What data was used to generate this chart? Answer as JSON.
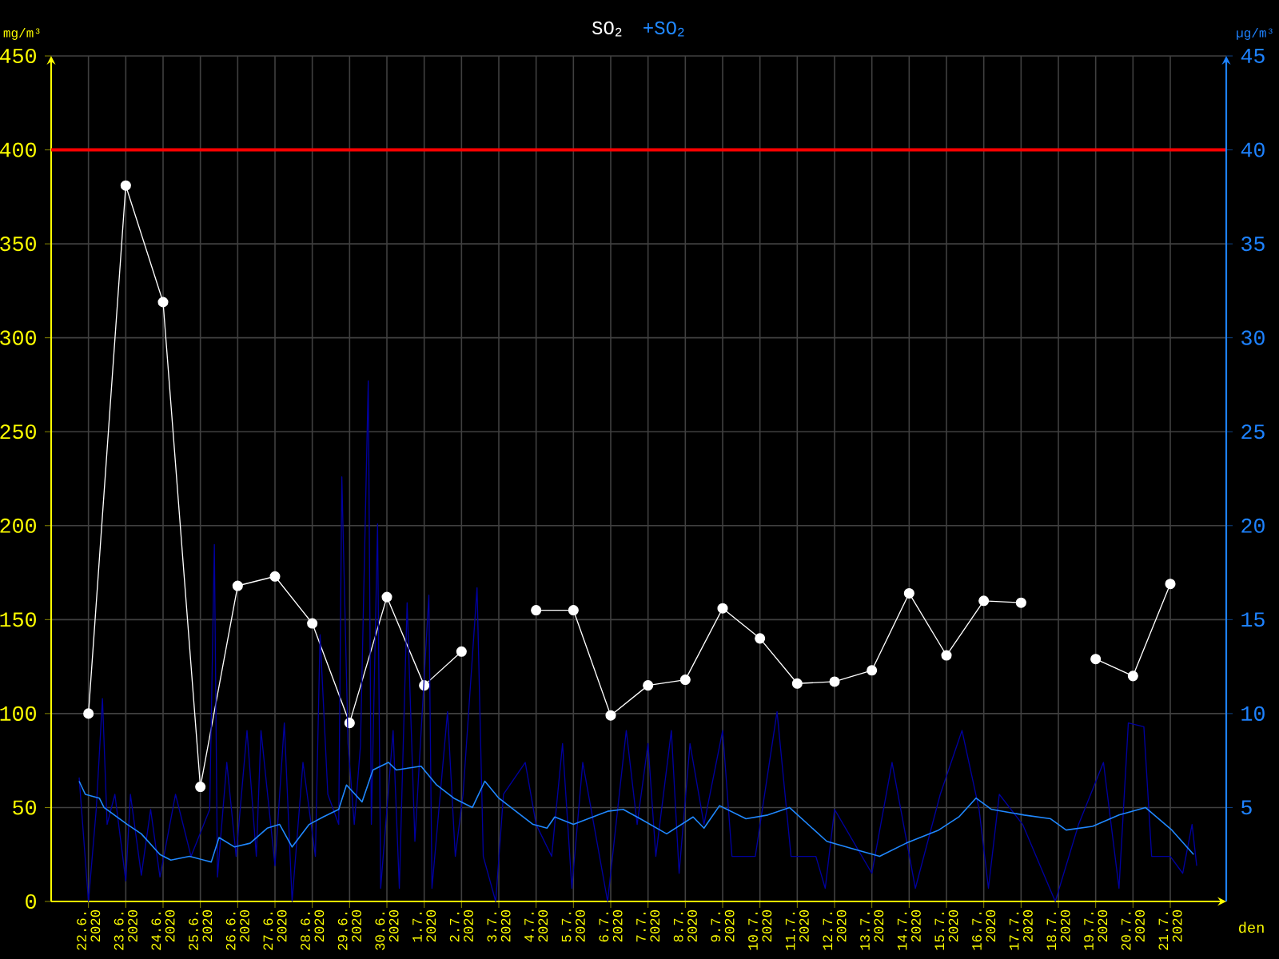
{
  "chart_data": {
    "type": "line",
    "legend": "top",
    "grid": true,
    "xlabel": "den",
    "ylabel": "mg/m³",
    "y2label": "µg/m³",
    "xlim": [
      "2020-06-21",
      "2020-07-22T12:00"
    ],
    "xticks": [
      {
        "value": "2020-06-22",
        "label": "22.6. 2020"
      },
      {
        "value": "2020-06-23",
        "label": "23.6. 2020"
      },
      {
        "value": "2020-06-24",
        "label": "24.6. 2020"
      },
      {
        "value": "2020-06-25",
        "label": "25.6. 2020"
      },
      {
        "value": "2020-06-26",
        "label": "26.6. 2020"
      },
      {
        "value": "2020-06-27",
        "label": "27.6. 2020"
      },
      {
        "value": "2020-06-28",
        "label": "28.6. 2020"
      },
      {
        "value": "2020-06-29",
        "label": "29.6. 2020"
      },
      {
        "value": "2020-06-30",
        "label": "30.6. 2020"
      },
      {
        "value": "2020-07-01",
        "label": "1.7. 2020"
      },
      {
        "value": "2020-07-02",
        "label": "2.7. 2020"
      },
      {
        "value": "2020-07-03",
        "label": "3.7. 2020"
      },
      {
        "value": "2020-07-04",
        "label": "4.7. 2020"
      },
      {
        "value": "2020-07-05",
        "label": "5.7. 2020"
      },
      {
        "value": "2020-07-06",
        "label": "6.7. 2020"
      },
      {
        "value": "2020-07-07",
        "label": "7.7. 2020"
      },
      {
        "value": "2020-07-08",
        "label": "8.7. 2020"
      },
      {
        "value": "2020-07-09",
        "label": "9.7. 2020"
      },
      {
        "value": "2020-07-10",
        "label": "10.7. 2020"
      },
      {
        "value": "2020-07-11",
        "label": "11.7. 2020"
      },
      {
        "value": "2020-07-12",
        "label": "12.7. 2020"
      },
      {
        "value": "2020-07-13",
        "label": "13.7. 2020"
      },
      {
        "value": "2020-07-14",
        "label": "14.7. 2020"
      },
      {
        "value": "2020-07-15",
        "label": "15.7. 2020"
      },
      {
        "value": "2020-07-16",
        "label": "16.7. 2020"
      },
      {
        "value": "2020-07-17",
        "label": "17.7. 2020"
      },
      {
        "value": "2020-07-18",
        "label": "18.7. 2020"
      },
      {
        "value": "2020-07-19",
        "label": "19.7. 2020"
      },
      {
        "value": "2020-07-20",
        "label": "20.7. 2020"
      },
      {
        "value": "2020-07-21",
        "label": "21.7. 2020"
      }
    ],
    "ylim": [
      0,
      450
    ],
    "yticks": [
      0,
      50,
      100,
      150,
      200,
      250,
      300,
      350,
      400,
      450
    ],
    "y2lim": [
      0,
      45
    ],
    "y2ticks": [
      5,
      10,
      15,
      20,
      25,
      30,
      35,
      40,
      45
    ],
    "ref_lines": [
      {
        "axis": "y",
        "value": 400,
        "color": "#ff0000"
      }
    ],
    "series": [
      {
        "type": "line",
        "name": "SO$_{2}$",
        "color": "#ffffff",
        "marker": "circle",
        "x": [
          "2020-06-22",
          "2020-06-23",
          "2020-06-24",
          "2020-06-25",
          "2020-06-26",
          "2020-06-27",
          "2020-06-28",
          "2020-06-29",
          "2020-06-30",
          "2020-07-01",
          "2020-07-02",
          "2020-07-03",
          "2020-07-04",
          "2020-07-05",
          "2020-07-06",
          "2020-07-07",
          "2020-07-08",
          "2020-07-09",
          "2020-07-10",
          "2020-07-11",
          "2020-07-12",
          "2020-07-13",
          "2020-07-14",
          "2020-07-15",
          "2020-07-16",
          "2020-07-17",
          "2020-07-18",
          "2020-07-19",
          "2020-07-20",
          "2020-07-21"
        ],
        "values": [
          100,
          381,
          319,
          61,
          168,
          173,
          148,
          95,
          162,
          115,
          133,
          null,
          155,
          155,
          99,
          115,
          118,
          156,
          140,
          116,
          117,
          123,
          164,
          131,
          160,
          159,
          null,
          129,
          120,
          169
        ]
      },
      {
        "type": "line",
        "axis": "y2",
        "color": "#0000a0",
        "x": [
          "2020-06-21T18:00",
          "2020-06-22T00:00",
          "2020-06-22T05:00",
          "2020-06-22T09:00",
          "2020-06-22T12:00",
          "2020-06-22T17:00",
          "2020-06-23T00:00",
          "2020-06-23T03:00",
          "2020-06-23T10:00",
          "2020-06-23T16:00",
          "2020-06-23T22:00",
          "2020-06-24T08:00",
          "2020-06-24T18:00",
          "2020-06-25T06:00",
          "2020-06-25T09:00",
          "2020-06-25T11:00",
          "2020-06-25T17:00",
          "2020-06-25T23:00",
          "2020-06-26T06:00",
          "2020-06-26T12:00",
          "2020-06-26T15:00",
          "2020-06-27T00:00",
          "2020-06-27T06:00",
          "2020-06-27T11:00",
          "2020-06-27T18:00",
          "2020-06-28T02:00",
          "2020-06-28T05:00",
          "2020-06-28T10:00",
          "2020-06-28T17:00",
          "2020-06-28T19:00",
          "2020-06-28T23:00",
          "2020-06-29T03:00",
          "2020-06-29T07:00",
          "2020-06-29T12:00",
          "2020-06-29T14:00",
          "2020-06-29T18:00",
          "2020-06-29T20:00",
          "2020-06-30T04:00",
          "2020-06-30T08:00",
          "2020-06-30T13:00",
          "2020-06-30T18:00",
          "2020-07-01T03:00",
          "2020-07-01T05:00",
          "2020-07-01T15:00",
          "2020-07-01T20:00",
          "2020-07-02T01:00",
          "2020-07-02T10:00",
          "2020-07-02T14:00",
          "2020-07-02T22:00",
          "2020-07-03T03:00",
          "2020-07-03T17:00",
          "2020-07-04T00:00",
          "2020-07-04T10:00",
          "2020-07-04T17:00",
          "2020-07-04T23:00",
          "2020-07-05T06:00",
          "2020-07-05T22:00",
          "2020-07-06T10:00",
          "2020-07-06T17:00",
          "2020-07-07T00:00",
          "2020-07-07T05:00",
          "2020-07-07T15:00",
          "2020-07-07T20:00",
          "2020-07-08T03:00",
          "2020-07-08T12:00",
          "2020-07-09T00:00",
          "2020-07-09T06:00",
          "2020-07-09T21:00",
          "2020-07-10T11:00",
          "2020-07-10T20:00",
          "2020-07-11T12:00",
          "2020-07-11T18:00",
          "2020-07-12T00:00",
          "2020-07-13T00:00",
          "2020-07-13T13:00",
          "2020-07-14T04:00",
          "2020-07-14T20:00",
          "2020-07-15T10:00",
          "2020-07-15T21:00",
          "2020-07-16T03:00",
          "2020-07-16T10:00",
          "2020-07-17T01:00",
          "2020-07-17T22:00",
          "2020-07-18T13:00",
          "2020-07-19T05:00",
          "2020-07-19T15:00",
          "2020-07-19T21:00",
          "2020-07-20T07:00",
          "2020-07-20T12:00",
          "2020-07-21T00:00",
          "2020-07-21T08:00",
          "2020-07-21T14:00",
          "2020-07-21T17:00"
        ],
        "values": [
          6.6,
          0,
          4.9,
          10.8,
          4.1,
          5.7,
          1.1,
          5.7,
          1.4,
          4.9,
          1.3,
          5.7,
          2.4,
          4.9,
          19.0,
          1.3,
          7.4,
          2.4,
          9.1,
          2.4,
          9.1,
          1.9,
          9.5,
          0,
          7.4,
          2.4,
          14.2,
          5.7,
          4.1,
          22.6,
          8.4,
          4.1,
          8.3,
          27.7,
          4.1,
          20.1,
          0.7,
          9.1,
          0.7,
          15.9,
          3.2,
          16.3,
          0.7,
          10.1,
          2.4,
          5.7,
          16.7,
          2.4,
          0,
          5.7,
          7.4,
          4.1,
          2.4,
          8.4,
          0.7,
          7.4,
          0,
          9.1,
          4.1,
          8.4,
          2.4,
          9.1,
          1.5,
          8.4,
          4.1,
          9.1,
          2.4,
          2.4,
          10.1,
          2.4,
          2.4,
          0.7,
          4.9,
          1.5,
          7.4,
          0.7,
          5.7,
          9.1,
          4.9,
          0.7,
          5.7,
          4.1,
          0,
          4.1,
          7.4,
          0.7,
          9.5,
          9.3,
          2.4,
          2.4,
          1.5,
          4.1,
          1.9
        ]
      },
      {
        "type": "line",
        "axis": "y2",
        "name": "+SO$_{2}$",
        "color": "#2088ff",
        "x": [
          "2020-06-21T18:00",
          "2020-06-21T22:00",
          "2020-06-22T07:00",
          "2020-06-22T10:00",
          "2020-06-23T01:00",
          "2020-06-23T10:00",
          "2020-06-23T22:00",
          "2020-06-24T05:00",
          "2020-06-24T17:00",
          "2020-06-25T07:00",
          "2020-06-25T12:00",
          "2020-06-25T22:00",
          "2020-06-26T08:00",
          "2020-06-26T19:00",
          "2020-06-27T03:00",
          "2020-06-27T11:00",
          "2020-06-27T22:00",
          "2020-06-28T07:00",
          "2020-06-28T17:00",
          "2020-06-28T22:00",
          "2020-06-29T08:00",
          "2020-06-29T15:00",
          "2020-06-30T01:00",
          "2020-06-30T06:00",
          "2020-06-30T22:00",
          "2020-07-01T08:00",
          "2020-07-01T19:00",
          "2020-07-02T07:00",
          "2020-07-02T15:00",
          "2020-07-03T00:00",
          "2020-07-03T22:00",
          "2020-07-04T07:00",
          "2020-07-04T12:00",
          "2020-07-05T00:00",
          "2020-07-05T22:00",
          "2020-07-06T08:00",
          "2020-07-06T19:00",
          "2020-07-07T12:00",
          "2020-07-08T05:00",
          "2020-07-08T12:00",
          "2020-07-08T22:00",
          "2020-07-09T15:00",
          "2020-07-10T05:00",
          "2020-07-10T19:00",
          "2020-07-11T19:00",
          "2020-07-12T12:00",
          "2020-07-13T05:00",
          "2020-07-13T22:00",
          "2020-07-14T19:00",
          "2020-07-15T08:00",
          "2020-07-15T19:00",
          "2020-07-16T05:00",
          "2020-07-17T02:00",
          "2020-07-17T19:00",
          "2020-07-18T05:00",
          "2020-07-18T22:00",
          "2020-07-19T15:00",
          "2020-07-20T08:00",
          "2020-07-21T01:00",
          "2020-07-21T15:00"
        ],
        "values": [
          6.4,
          5.7,
          5.5,
          5.0,
          4.1,
          3.6,
          2.5,
          2.2,
          2.4,
          2.1,
          3.4,
          2.9,
          3.1,
          3.9,
          4.1,
          2.9,
          4.1,
          4.5,
          4.9,
          6.2,
          5.3,
          7.0,
          7.4,
          7.0,
          7.2,
          6.2,
          5.5,
          5.0,
          6.4,
          5.5,
          4.1,
          3.9,
          4.5,
          4.1,
          4.8,
          4.9,
          4.4,
          3.6,
          4.5,
          3.9,
          5.1,
          4.4,
          4.6,
          5.0,
          3.2,
          2.8,
          2.4,
          3.1,
          3.8,
          4.5,
          5.5,
          4.9,
          4.6,
          4.4,
          3.8,
          4.0,
          4.6,
          5.0,
          3.8,
          2.5
        ]
      }
    ]
  }
}
